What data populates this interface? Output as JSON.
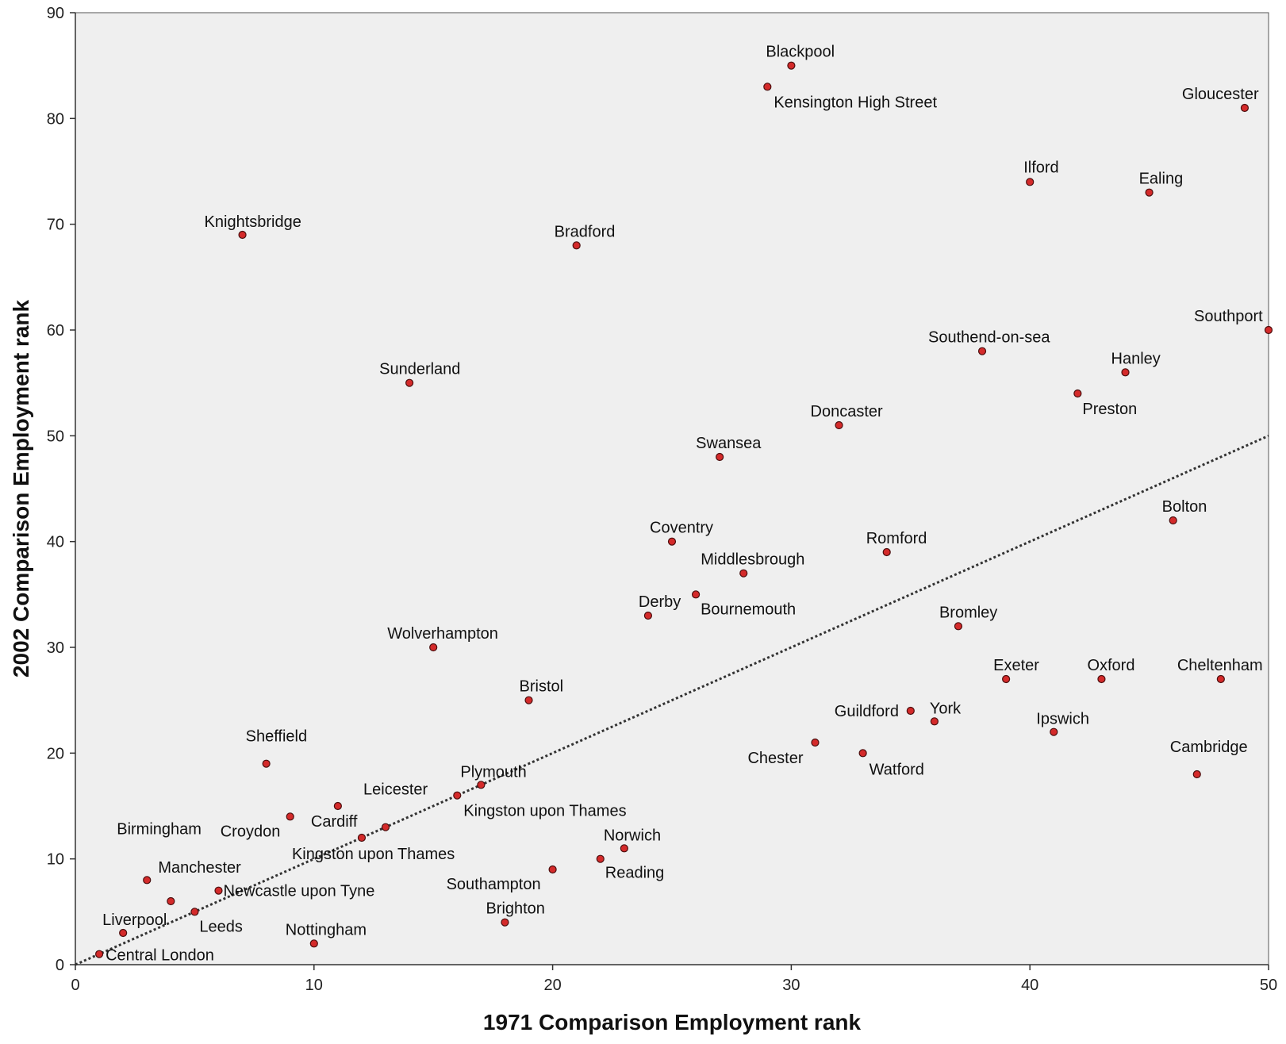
{
  "chart_data": {
    "type": "scatter",
    "title": "",
    "xlabel": "1971 Comparison Employment rank",
    "ylabel": "2002 Comparison Employment rank",
    "xlim": [
      0,
      50
    ],
    "ylim": [
      0,
      90
    ],
    "x_ticks": [
      0,
      10,
      20,
      30,
      40,
      50
    ],
    "y_ticks": [
      0,
      10,
      20,
      30,
      40,
      50,
      60,
      70,
      80,
      90
    ],
    "grid": false,
    "legend": "none",
    "reference_line": {
      "style": "dotted",
      "from": [
        0,
        0
      ],
      "to": [
        50,
        50
      ]
    },
    "colors": {
      "background": "#efefef",
      "marker": "#d42a2a",
      "marker_edge": "#4a0e0e",
      "line": "#333333"
    },
    "points": [
      {
        "label": "Central London",
        "x": 1,
        "y": 1
      },
      {
        "label": "Liverpool",
        "x": 2,
        "y": 3
      },
      {
        "label": "Birmingham",
        "x": 3,
        "y": 8
      },
      {
        "label": "Manchester",
        "x": 4,
        "y": 6
      },
      {
        "label": "Leeds",
        "x": 5,
        "y": 5
      },
      {
        "label": "Newcastle upon Tyne",
        "x": 6,
        "y": 7
      },
      {
        "label": "Knightsbridge",
        "x": 7,
        "y": 69
      },
      {
        "label": "Sheffield",
        "x": 8,
        "y": 19
      },
      {
        "label": "Croydon",
        "x": 9,
        "y": 14
      },
      {
        "label": "Nottingham",
        "x": 10,
        "y": 2
      },
      {
        "label": "Cardiff",
        "x": 11,
        "y": 15
      },
      {
        "label": "Kingston upon Thames",
        "x": 12,
        "y": 12
      },
      {
        "label": "Leicester",
        "x": 13,
        "y": 13
      },
      {
        "label": "Sunderland",
        "x": 14,
        "y": 55
      },
      {
        "label": "Wolverhampton",
        "x": 15,
        "y": 30
      },
      {
        "label": "Kingston upon Thames",
        "x": 16,
        "y": 16
      },
      {
        "label": "Plymouth",
        "x": 17,
        "y": 17
      },
      {
        "label": "Brighton",
        "x": 18,
        "y": 4
      },
      {
        "label": "Bristol",
        "x": 19,
        "y": 25
      },
      {
        "label": "Southampton",
        "x": 20,
        "y": 9
      },
      {
        "label": "Bradford",
        "x": 21,
        "y": 68
      },
      {
        "label": "Reading",
        "x": 22,
        "y": 10
      },
      {
        "label": "Norwich",
        "x": 23,
        "y": 11
      },
      {
        "label": "Derby",
        "x": 24,
        "y": 33
      },
      {
        "label": "Coventry",
        "x": 25,
        "y": 40
      },
      {
        "label": "Bournemouth",
        "x": 26,
        "y": 35
      },
      {
        "label": "Swansea",
        "x": 27,
        "y": 48
      },
      {
        "label": "Middlesbrough",
        "x": 28,
        "y": 37
      },
      {
        "label": "Kensington High Street",
        "x": 29,
        "y": 83
      },
      {
        "label": "Blackpool",
        "x": 30,
        "y": 85
      },
      {
        "label": "Chester",
        "x": 31,
        "y": 21
      },
      {
        "label": "Doncaster",
        "x": 32,
        "y": 51
      },
      {
        "label": "Watford",
        "x": 33,
        "y": 20
      },
      {
        "label": "Romford",
        "x": 34,
        "y": 39
      },
      {
        "label": "Guildford",
        "x": 35,
        "y": 24
      },
      {
        "label": "York",
        "x": 36,
        "y": 23
      },
      {
        "label": "Bromley",
        "x": 37,
        "y": 32
      },
      {
        "label": "Southend-on-sea",
        "x": 38,
        "y": 58
      },
      {
        "label": "Exeter",
        "x": 39,
        "y": 27
      },
      {
        "label": "Ilford",
        "x": 40,
        "y": 74
      },
      {
        "label": "Ipswich",
        "x": 41,
        "y": 22
      },
      {
        "label": "Preston",
        "x": 42,
        "y": 54
      },
      {
        "label": "Oxford",
        "x": 43,
        "y": 27
      },
      {
        "label": "Hanley",
        "x": 44,
        "y": 56
      },
      {
        "label": "Ealing",
        "x": 45,
        "y": 73
      },
      {
        "label": "Bolton",
        "x": 46,
        "y": 42
      },
      {
        "label": "Cambridge",
        "x": 47,
        "y": 18
      },
      {
        "label": "Cheltenham",
        "x": 48,
        "y": 27
      },
      {
        "label": "Gloucester",
        "x": 49,
        "y": 81
      },
      {
        "label": "Southport",
        "x": 50,
        "y": 60
      }
    ]
  }
}
